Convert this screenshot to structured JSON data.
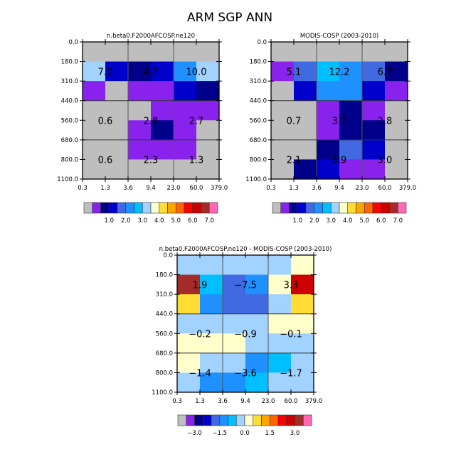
{
  "title": "ARM SGP ANN",
  "chart_data": [
    {
      "type": "heatmap",
      "title": "n.beta0.F2000AFCOSP.ne120",
      "x_ticks": [
        "0.3",
        "1.3",
        "3.6",
        "9.4",
        "23.0",
        "60.0",
        "379.0"
      ],
      "y_ticks": [
        "0.0",
        "180.0",
        "310.0",
        "440.0",
        "560.0",
        "680.0",
        "800.0",
        "1100.0"
      ],
      "color_index": [
        [
          0,
          0,
          0,
          0,
          0,
          0
        ],
        [
          7,
          3,
          2,
          3,
          5,
          7
        ],
        [
          1,
          0,
          1,
          1,
          3,
          2
        ],
        [
          0,
          0,
          0,
          1,
          1,
          1
        ],
        [
          0,
          0,
          1,
          2,
          1,
          0
        ],
        [
          0,
          0,
          1,
          1,
          1,
          0
        ],
        [
          0,
          0,
          0,
          0,
          0,
          0
        ]
      ],
      "annotations": [
        [
          "7.0",
          "4.7",
          "10.0"
        ],
        [
          "0.6",
          "2.8",
          "2.7"
        ],
        [
          "0.6",
          "2.3",
          "1.3"
        ]
      ],
      "colorbar_labels": [
        "1.0",
        "2.0",
        "3.0",
        "4.0",
        "5.0",
        "6.0",
        "7.0"
      ]
    },
    {
      "type": "heatmap",
      "title": "MODIS-COSP (2003-2010)",
      "x_ticks": [
        "0.3",
        "1.3",
        "3.6",
        "9.4",
        "23.0",
        "60.0",
        "379.0"
      ],
      "y_ticks": [
        "0.0",
        "180.0",
        "310.0",
        "440.0",
        "560.0",
        "680.0",
        "800.0",
        "1100.0"
      ],
      "color_index": [
        [
          0,
          0,
          0,
          0,
          0,
          0
        ],
        [
          1,
          4,
          6,
          5,
          4,
          2
        ],
        [
          0,
          3,
          5,
          5,
          3,
          1
        ],
        [
          0,
          0,
          1,
          2,
          1,
          0
        ],
        [
          0,
          0,
          1,
          2,
          2,
          0
        ],
        [
          0,
          0,
          2,
          4,
          3,
          0
        ],
        [
          0,
          2,
          3,
          1,
          1,
          0
        ]
      ],
      "annotations": [
        [
          "5.1",
          "12.2",
          "6.7"
        ],
        [
          "0.7",
          "3.7",
          "2.8"
        ],
        [
          "2.1",
          "5.9",
          "3.0"
        ]
      ],
      "colorbar_labels": [
        "1.0",
        "2.0",
        "3.0",
        "4.0",
        "5.0",
        "6.0",
        "7.0"
      ]
    },
    {
      "type": "heatmap",
      "title": "n.beta0.F2000AFCOSP.ne120 - MODIS-COSP (2003-2010)",
      "x_ticks": [
        "0.3",
        "1.3",
        "3.6",
        "9.4",
        "23.0",
        "60.0",
        "379.0"
      ],
      "y_ticks": [
        "0.0",
        "180.0",
        "310.0",
        "440.0",
        "560.0",
        "680.0",
        "800.0",
        "1100.0"
      ],
      "color_index": [
        [
          7,
          7,
          7,
          7,
          7,
          8
        ],
        [
          14,
          6,
          4,
          5,
          8,
          13
        ],
        [
          9,
          5,
          4,
          4,
          7,
          9
        ],
        [
          7,
          7,
          7,
          7,
          8,
          8
        ],
        [
          8,
          8,
          8,
          7,
          7,
          7
        ],
        [
          8,
          7,
          7,
          5,
          6,
          7
        ],
        [
          7,
          5,
          5,
          6,
          7,
          7
        ]
      ],
      "annotations": [
        [
          "1.9",
          "-7.5",
          "3.3"
        ],
        [
          "-0.2",
          "-0.9",
          "-0.1"
        ],
        [
          "-1.4",
          "-3.6",
          "-1.7"
        ]
      ],
      "colorbar_labels": [
        "-3.0",
        "-1.5",
        "0.0",
        "1.5",
        "3.0"
      ]
    }
  ],
  "palette": [
    "#bebebe",
    "#8a22ee",
    "#00008b",
    "#0000cd",
    "#4169e1",
    "#1e90ff",
    "#00bfff",
    "#a2d2ff",
    "#ffffcc",
    "#ffdd33",
    "#ffa500",
    "#ff6600",
    "#ff0000",
    "#cc0000",
    "#a52a2a",
    "#ff69b4"
  ]
}
